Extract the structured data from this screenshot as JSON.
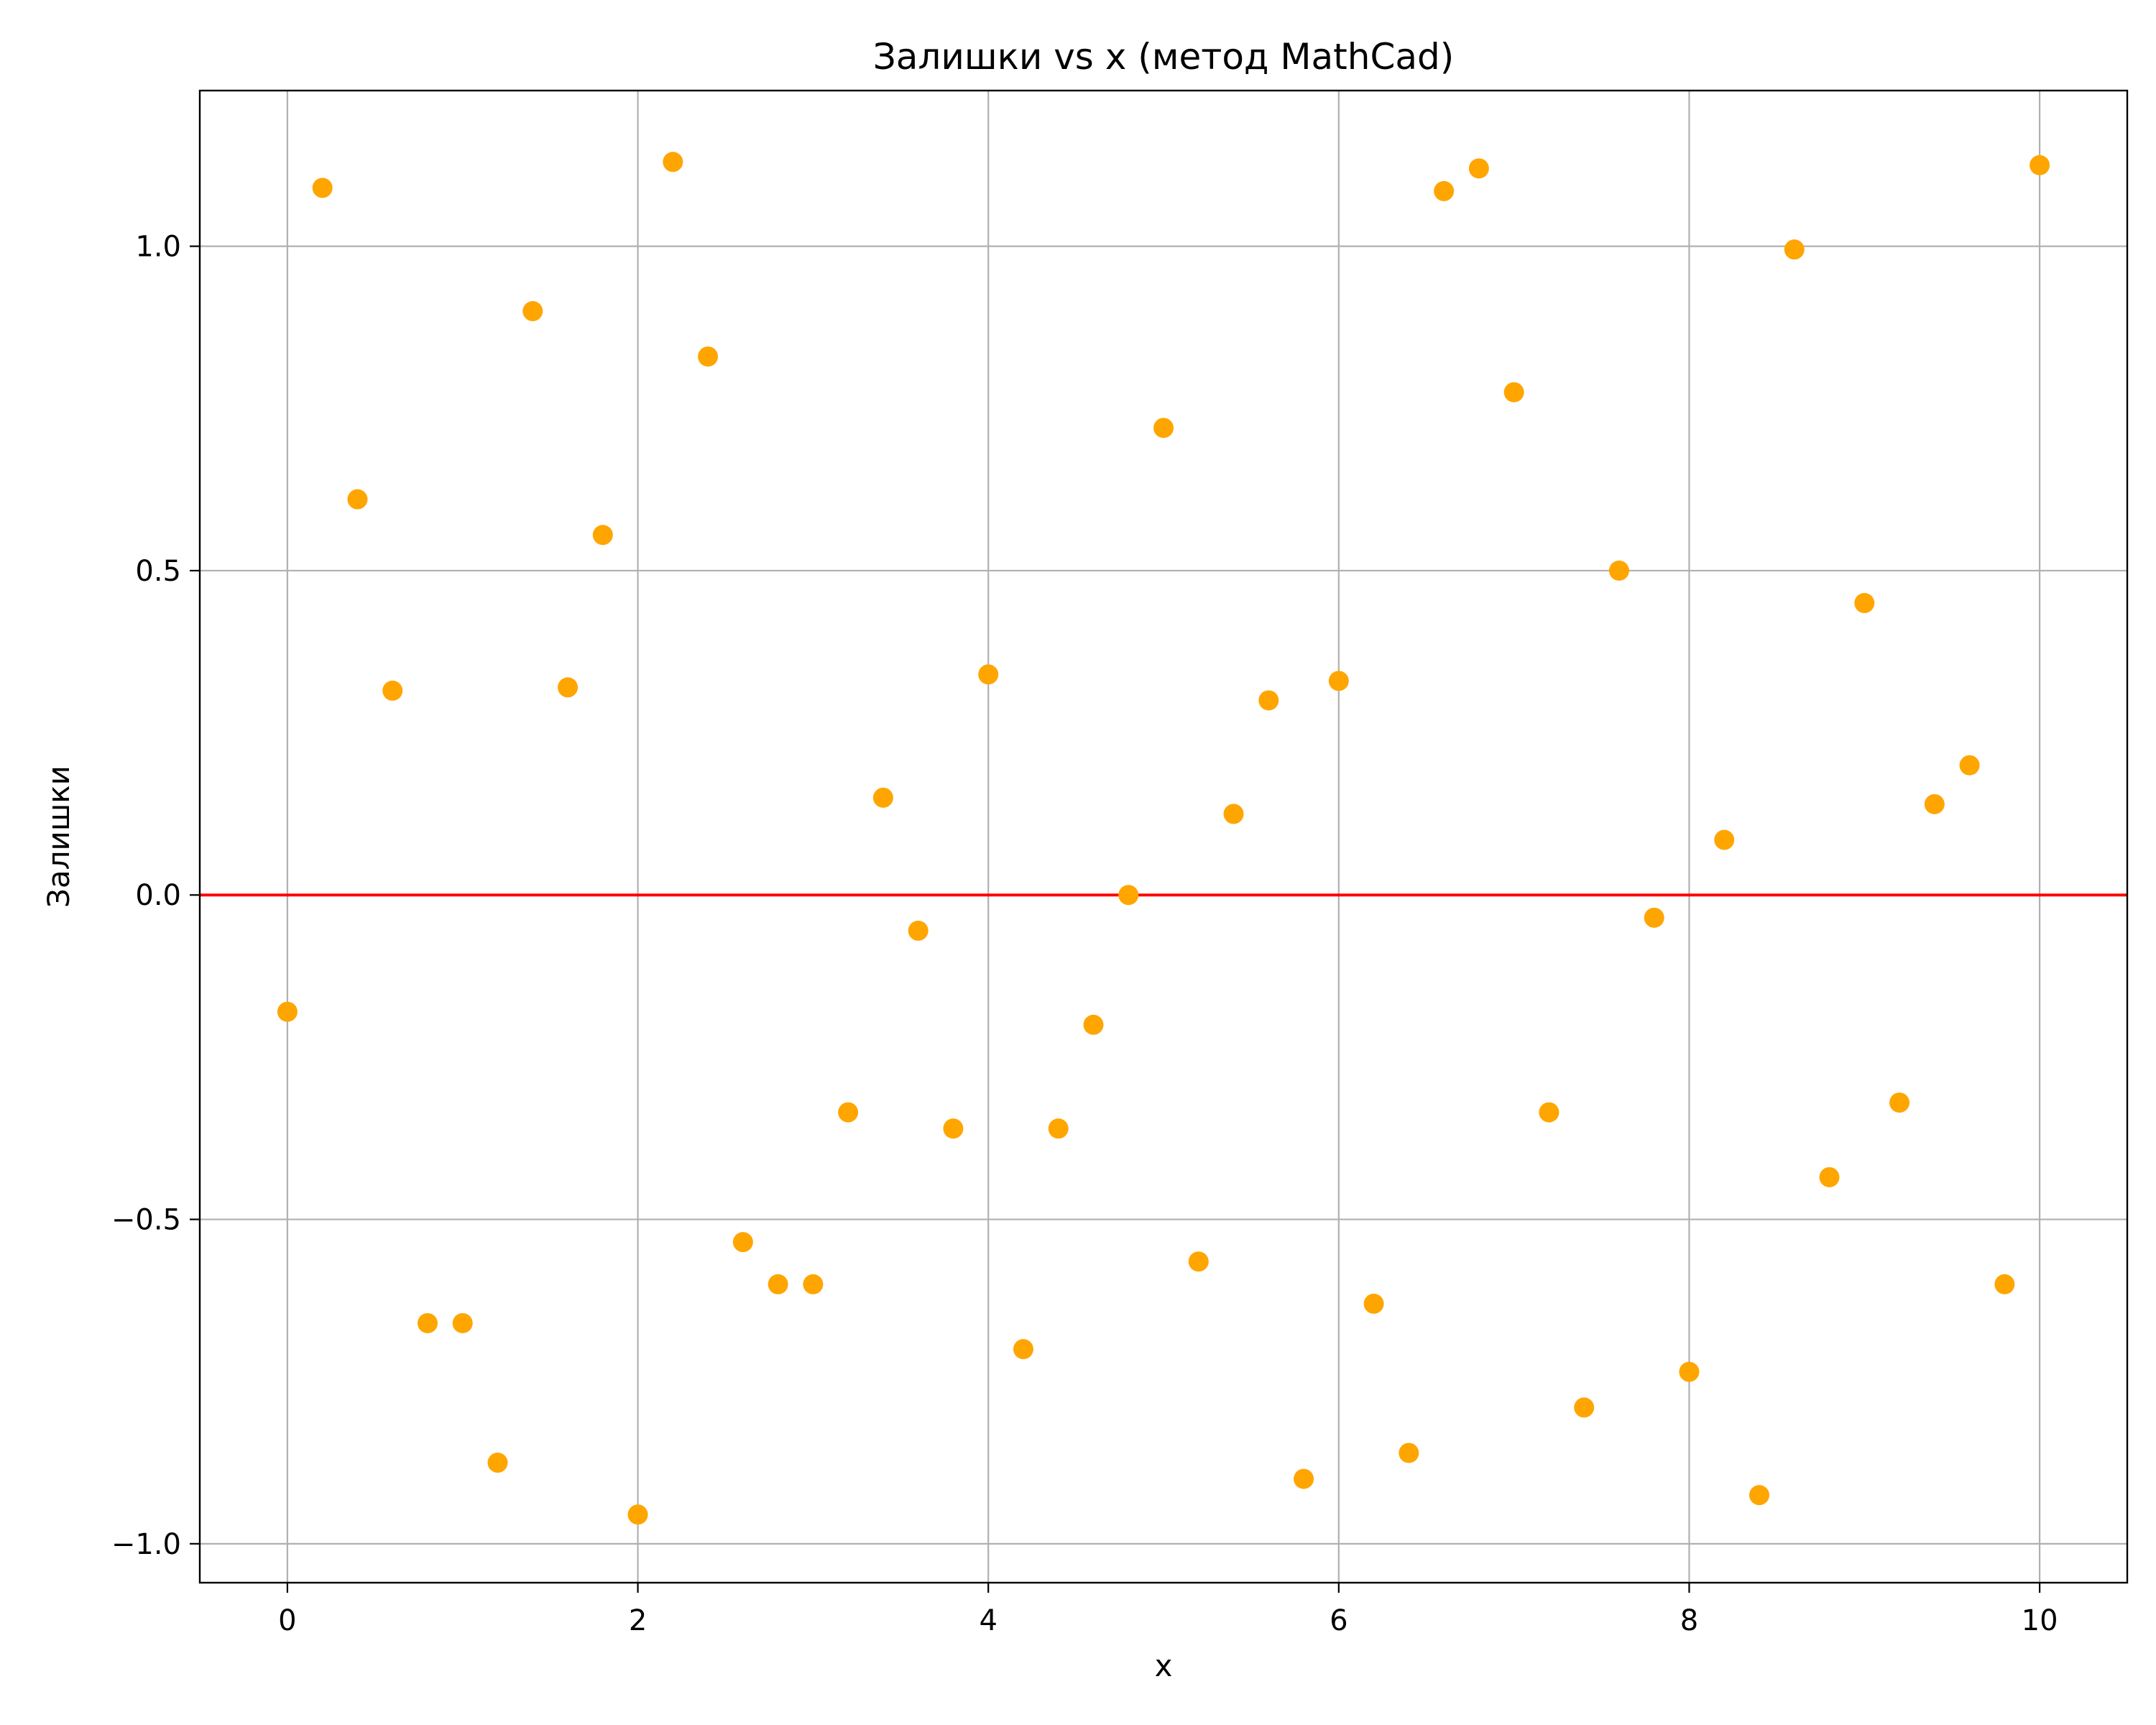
{
  "colors": {
    "points": "#ffa500",
    "zero_line": "#ff0000",
    "grid": "#b0b0b0",
    "axes": "#000000"
  },
  "chart_data": {
    "type": "scatter",
    "title": "Залишки vs x (метод MathCad)",
    "xlabel": "x",
    "ylabel": "Залишки",
    "xlim": [
      -0.5,
      10.5
    ],
    "ylim": [
      -1.06,
      1.24
    ],
    "xticks": [
      0,
      2,
      4,
      6,
      8,
      10
    ],
    "xtick_labels": [
      "0",
      "2",
      "4",
      "6",
      "8",
      "10"
    ],
    "yticks": [
      -1.0,
      -0.5,
      0.0,
      0.5,
      1.0
    ],
    "ytick_labels": [
      "−1.0",
      "−0.5",
      "0.0",
      "0.5",
      "1.0"
    ],
    "grid": true,
    "reference_line": {
      "y": 0.0,
      "color": "#ff0000"
    },
    "series": [
      {
        "points": [
          [
            0.0,
            -0.18
          ],
          [
            0.2,
            1.09
          ],
          [
            0.4,
            0.61
          ],
          [
            0.6,
            0.315
          ],
          [
            0.8,
            -0.66
          ],
          [
            1.0,
            -0.66
          ],
          [
            1.2,
            -0.875
          ],
          [
            1.4,
            0.9
          ],
          [
            1.6,
            0.32
          ],
          [
            1.8,
            0.555
          ],
          [
            2.0,
            -0.955
          ],
          [
            2.2,
            1.13
          ],
          [
            2.4,
            0.83
          ],
          [
            2.6,
            -0.535
          ],
          [
            2.8,
            -0.6
          ],
          [
            3.0,
            -0.6
          ],
          [
            3.2,
            -0.335
          ],
          [
            3.4,
            0.15
          ],
          [
            3.6,
            -0.055
          ],
          [
            3.8,
            -0.36
          ],
          [
            4.0,
            0.34
          ],
          [
            4.2,
            -0.7
          ],
          [
            4.4,
            -0.36
          ],
          [
            4.6,
            -0.2
          ],
          [
            4.8,
            0.0
          ],
          [
            5.0,
            0.72
          ],
          [
            5.2,
            -0.565
          ],
          [
            5.4,
            0.125
          ],
          [
            5.6,
            0.3
          ],
          [
            5.8,
            -0.9
          ],
          [
            6.0,
            0.33
          ],
          [
            6.2,
            -0.63
          ],
          [
            6.4,
            -0.86
          ],
          [
            6.6,
            1.085
          ],
          [
            6.8,
            1.12
          ],
          [
            7.0,
            0.775
          ],
          [
            7.2,
            -0.335
          ],
          [
            7.4,
            -0.79
          ],
          [
            7.6,
            0.5
          ],
          [
            7.8,
            -0.035
          ],
          [
            8.0,
            -0.735
          ],
          [
            8.2,
            0.085
          ],
          [
            8.4,
            -0.925
          ],
          [
            8.6,
            0.995
          ],
          [
            8.8,
            -0.435
          ],
          [
            9.0,
            0.45
          ],
          [
            9.2,
            -0.32
          ],
          [
            9.4,
            0.14
          ],
          [
            9.6,
            0.2
          ],
          [
            9.8,
            -0.6
          ],
          [
            10.0,
            1.125
          ]
        ]
      }
    ]
  }
}
